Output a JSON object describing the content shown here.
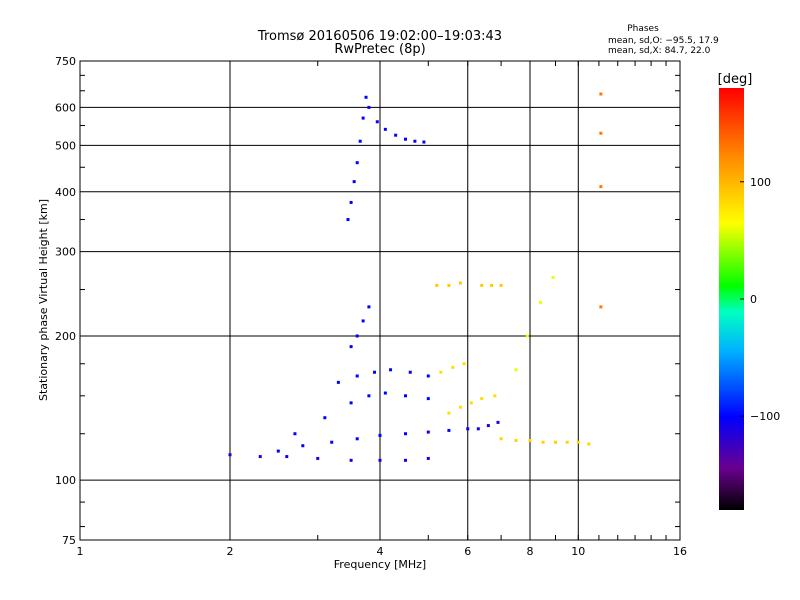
{
  "header": {
    "title": "Tromsø 20160506 19:02:00–19:03:43",
    "subtitle": "RwPretec (8p)",
    "stats_title": "Phases",
    "stats_line1": "mean, sd,O: −95.5, 17.9",
    "stats_line2": "mean, sd,X: 84.7, 22.0"
  },
  "colorbar": {
    "label": "[deg]",
    "tick_labels": [
      "100",
      "0",
      "−100"
    ],
    "ticks": [
      100,
      0,
      -100
    ],
    "range": [
      -180,
      180
    ]
  },
  "chart_data": {
    "type": "scatter",
    "xlabel": "Frequency [MHz]",
    "ylabel": "Stationary phase Virtual Height [km]",
    "x_scale": "log",
    "y_scale": "log",
    "xlim": [
      1,
      16
    ],
    "ylim": [
      75,
      750
    ],
    "x_ticks": [
      1,
      2,
      4,
      6,
      8,
      10,
      16
    ],
    "x_tick_labels": [
      "1",
      "2",
      "4",
      "6",
      "8",
      "10",
      "16"
    ],
    "y_ticks": [
      75,
      100,
      200,
      300,
      400,
      500,
      600,
      750
    ],
    "y_tick_labels": [
      "75",
      "100",
      "200",
      "300",
      "400",
      "500",
      "600",
      "750"
    ],
    "grid": true,
    "traces": [
      {
        "x": [
          3.45,
          3.5,
          3.55,
          3.6,
          3.65,
          3.7,
          3.75
        ],
        "y": [
          350,
          380,
          420,
          460,
          510,
          570,
          630
        ],
        "phase": -100
      },
      {
        "x": [
          3.8,
          3.95,
          4.1,
          4.3,
          4.5,
          4.7,
          4.9
        ],
        "y": [
          600,
          560,
          540,
          525,
          515,
          510,
          508
        ],
        "phase": -105
      },
      {
        "x": [
          2.0,
          2.3,
          2.6,
          3.0,
          3.5,
          4.0,
          4.5,
          5.0
        ],
        "y": [
          113,
          112,
          112,
          111,
          110,
          110,
          110,
          111
        ],
        "phase": -110
      },
      {
        "x": [
          2.5,
          2.8,
          3.2,
          3.6,
          4.0,
          4.5,
          5.0,
          5.5,
          6.0
        ],
        "y": [
          115,
          118,
          120,
          122,
          124,
          125,
          126,
          127,
          128
        ],
        "phase": -100
      },
      {
        "x": [
          2.7,
          3.1,
          3.5,
          3.8,
          4.1,
          4.5,
          5.0
        ],
        "y": [
          125,
          135,
          145,
          150,
          152,
          150,
          148
        ],
        "phase": -100
      },
      {
        "x": [
          3.3,
          3.6,
          3.9,
          4.2,
          4.6,
          5.0
        ],
        "y": [
          160,
          165,
          168,
          170,
          168,
          165
        ],
        "phase": -100
      },
      {
        "x": [
          3.5,
          3.6,
          3.7,
          3.8
        ],
        "y": [
          190,
          200,
          215,
          230
        ],
        "phase": -100
      },
      {
        "x": [
          5.5,
          5.8,
          6.1,
          6.4,
          6.8
        ],
        "y": [
          138,
          142,
          145,
          148,
          150
        ],
        "phase": 80
      },
      {
        "x": [
          5.3,
          5.6,
          5.9
        ],
        "y": [
          168,
          172,
          175
        ],
        "phase": 80
      },
      {
        "x": [
          6.4,
          6.7,
          7.0
        ],
        "y": [
          255,
          255,
          255
        ],
        "phase": 90
      },
      {
        "x": [
          5.2,
          5.5,
          5.8
        ],
        "y": [
          255,
          255,
          258
        ],
        "phase": 90
      },
      {
        "x": [
          7.0,
          7.5,
          8.0,
          8.5,
          9.0,
          9.5,
          10.0,
          10.5
        ],
        "y": [
          122,
          121,
          121,
          120,
          120,
          120,
          120,
          119
        ],
        "phase": 85
      },
      {
        "x": [
          6.3,
          6.6,
          6.9
        ],
        "y": [
          128,
          130,
          132
        ],
        "phase": -110
      },
      {
        "x": [
          7.5,
          7.9,
          8.4,
          8.9
        ],
        "y": [
          170,
          200,
          235,
          265
        ],
        "phase": 60
      },
      {
        "x": [
          11.1,
          11.1,
          11.1,
          11.1
        ],
        "y": [
          530,
          640,
          230,
          410
        ],
        "phase": 130
      }
    ]
  }
}
